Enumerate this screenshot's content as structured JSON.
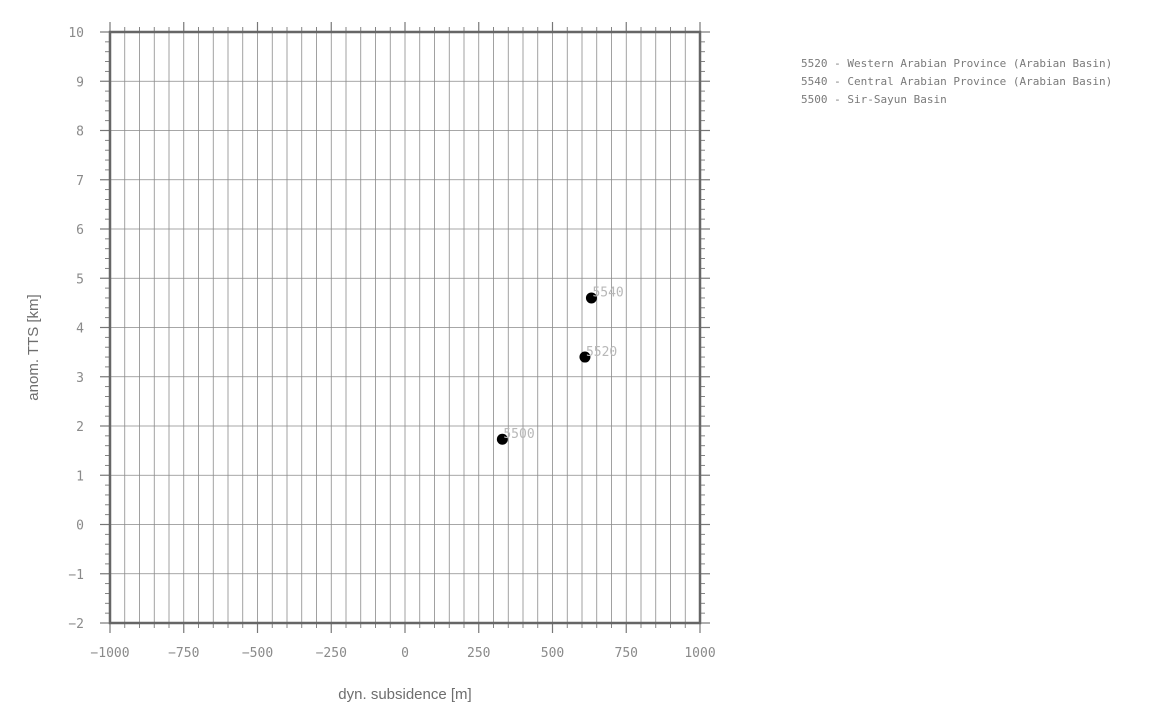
{
  "chart_data": {
    "type": "scatter",
    "title": "",
    "xlabel": "dyn. subsidence [m]",
    "ylabel": "anom. TTS [km]",
    "xlim": [
      -1000,
      1000
    ],
    "ylim": [
      -2,
      10
    ],
    "grid": true,
    "x_major_ticks": [
      -1000,
      -750,
      -500,
      -250,
      0,
      250,
      500,
      750,
      1000
    ],
    "x_tick_labels": [
      "−1000",
      "−750",
      "−500",
      "−250",
      "0",
      "250",
      "500",
      "750",
      "1000"
    ],
    "x_minor_step": 50,
    "y_major_ticks": [
      -2,
      -1,
      0,
      1,
      2,
      3,
      4,
      5,
      6,
      7,
      8,
      9,
      10
    ],
    "y_tick_labels": [
      "−2",
      "−1",
      "0",
      "1",
      "2",
      "3",
      "4",
      "5",
      "6",
      "7",
      "8",
      "9",
      "10"
    ],
    "y_minor_step": 0.2,
    "points": [
      {
        "label": "5540",
        "x": 632,
        "y": 4.6
      },
      {
        "label": "5520",
        "x": 610,
        "y": 3.4
      },
      {
        "label": "5500",
        "x": 330,
        "y": 1.73
      }
    ],
    "legend": [
      "5520 - Western Arabian Province (Arabian Basin)",
      "5540 - Central Arabian Province (Arabian Basin)",
      "5500 - Sir-Sayun Basin"
    ],
    "legend_position": "top-right",
    "colors": {
      "marker": "#000000",
      "frame": "#666666",
      "grid": "#8a8a8a",
      "tick_text": "#8a8a8a",
      "point_label": "#b8b8b8"
    }
  }
}
